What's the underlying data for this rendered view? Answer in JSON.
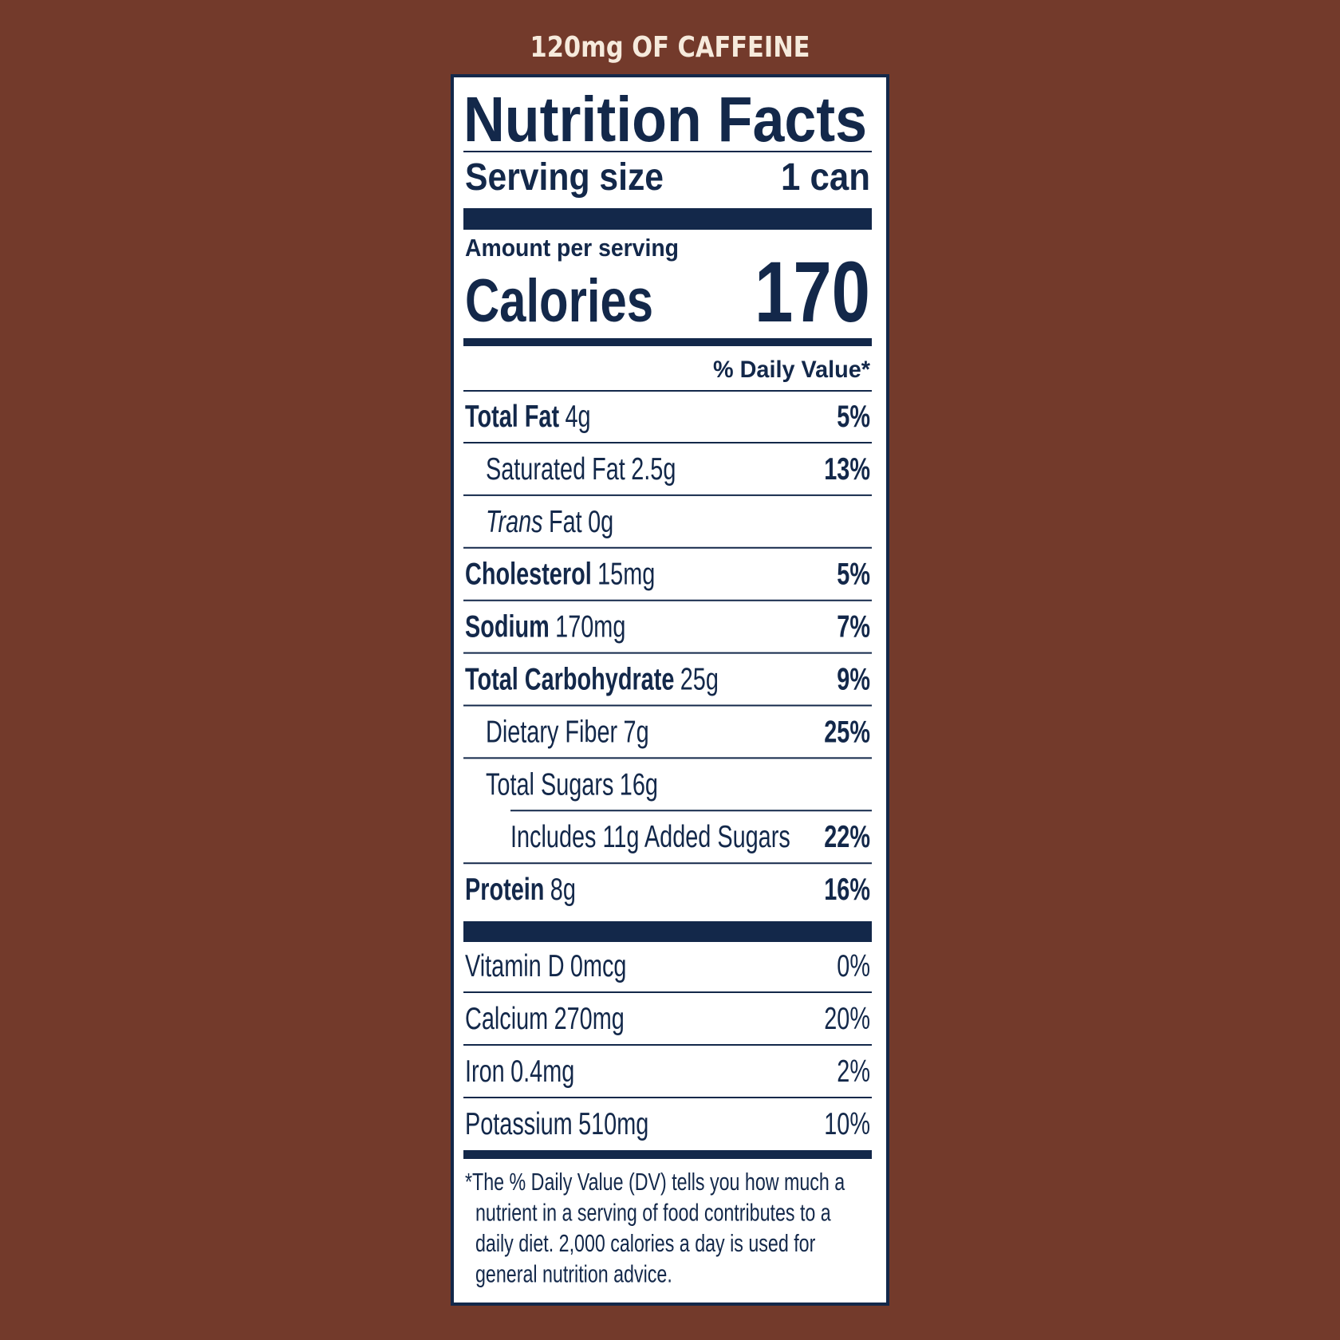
{
  "caption": "120mg OF CAFFEINE",
  "label": {
    "title": "Nutrition Facts",
    "serving_size_label": "Serving size",
    "serving_size": "1 can",
    "amount_per_serving": "Amount per serving",
    "calories_label": "Calories",
    "calories": 170,
    "daily_value_header": "% Daily Value*",
    "nutrients": [
      {
        "name": "Total Fat",
        "amount": "4g",
        "dv": "5%",
        "sub": [
          {
            "name": "Saturated Fat",
            "amount": "2.5g",
            "dv": "13%"
          },
          {
            "name_italic": "Trans",
            "name": "Fat",
            "amount": "0g"
          }
        ]
      },
      {
        "name": "Cholesterol",
        "amount": "15mg",
        "dv": "5%"
      },
      {
        "name": "Sodium",
        "amount": "170mg",
        "dv": "7%"
      },
      {
        "name": "Total Carbohydrate",
        "amount": "25g",
        "dv": "9%",
        "sub": [
          {
            "name": "Dietary Fiber",
            "amount": "7g",
            "dv": "25%"
          },
          {
            "name": "Total Sugars",
            "amount": "16g",
            "sub": [
              {
                "name": "Includes 11g Added Sugars",
                "dv": "22%"
              }
            ]
          }
        ]
      },
      {
        "name": "Protein",
        "amount": "8g",
        "dv": "16%"
      }
    ],
    "vitamins": [
      {
        "name": "Vitamin D",
        "amount": "0mcg",
        "dv": "0%"
      },
      {
        "name": "Calcium",
        "amount": "270mg",
        "dv": "20%"
      },
      {
        "name": "Iron",
        "amount": "0.4mg",
        "dv": "2%"
      },
      {
        "name": "Potassium",
        "amount": "510mg",
        "dv": "10%"
      }
    ],
    "footnote": [
      "*The % Daily Value (DV) tells you how much a",
      "nutrient in a serving of food contributes to a",
      "daily diet. 2,000 calories a day is used for",
      "general nutrition advice."
    ]
  }
}
